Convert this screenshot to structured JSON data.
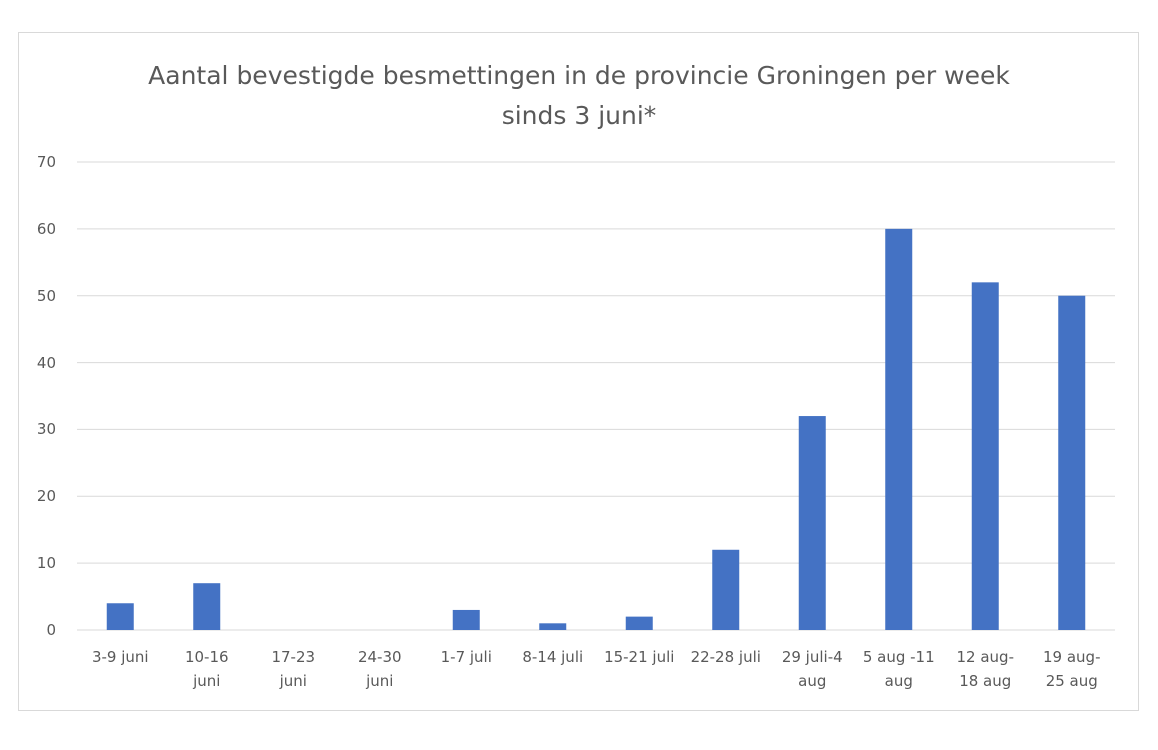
{
  "chart_data": {
    "type": "bar",
    "title": "Aantal bevestigde besmettingen in de provincie Groningen per week sinds 3 juni*",
    "categories": [
      "3-9 juni",
      "10-16\njuni",
      "17-23\njuni",
      "24-30\njuni",
      "1-7 juli",
      "8-14 juli",
      "15-21 juli",
      "22-28 juli",
      "29 juli-4\naug",
      "5 aug -11\naug",
      "12 aug-\n18 aug",
      "19 aug-\n25 aug"
    ],
    "values": [
      4,
      7,
      0,
      0,
      3,
      1,
      2,
      12,
      32,
      60,
      52,
      50
    ],
    "color": "#4472c4",
    "ylim": [
      0,
      70
    ],
    "yticks": [
      0,
      10,
      20,
      30,
      40,
      50,
      60,
      70
    ],
    "grid": true
  }
}
